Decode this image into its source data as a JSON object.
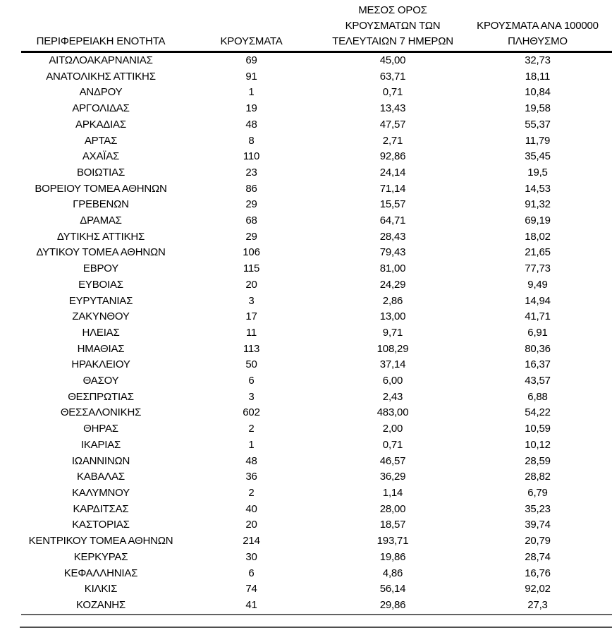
{
  "table": {
    "columns": [
      "ΠΕΡΙΦΕΡΕΙΑΚΗ ΕΝΟΤΗΤΑ",
      "ΚΡΟΥΣΜΑΤΑ",
      "ΜΕΣΟΣ ΟΡΟΣ ΚΡΟΥΣΜΑΤΩΝ ΤΩΝ ΤΕΛΕΥΤΑΙΩΝ 7 ΗΜΕΡΩΝ",
      "ΚΡΟΥΣΜΑΤΑ ΑΝΑ 100000 ΠΛΗΘΥΣΜΟ"
    ],
    "header_lines": [
      [
        "ΠΕΡΙΦΕΡΕΙΑΚΗ ΕΝΟΤΗΤΑ"
      ],
      [
        "ΚΡΟΥΣΜΑΤΑ"
      ],
      [
        "ΜΕΣΟΣ ΟΡΟΣ",
        "ΚΡΟΥΣΜΑΤΩΝ ΤΩΝ",
        "ΤΕΛΕΥΤΑΙΩΝ 7 ΗΜΕΡΩΝ"
      ],
      [
        "ΚΡΟΥΣΜΑΤΑ ΑΝΑ 100000",
        "ΠΛΗΘΥΣΜΟ"
      ]
    ],
    "rows": [
      [
        "ΑΙΤΩΛΟΑΚΑΡΝΑΝΙΑΣ",
        "69",
        "45,00",
        "32,73"
      ],
      [
        "ΑΝΑΤΟΛΙΚΗΣ ΑΤΤΙΚΗΣ",
        "91",
        "63,71",
        "18,11"
      ],
      [
        "ΑΝΔΡΟΥ",
        "1",
        "0,71",
        "10,84"
      ],
      [
        "ΑΡΓΟΛΙΔΑΣ",
        "19",
        "13,43",
        "19,58"
      ],
      [
        "ΑΡΚΑΔΙΑΣ",
        "48",
        "47,57",
        "55,37"
      ],
      [
        "ΑΡΤΑΣ",
        "8",
        "2,71",
        "11,79"
      ],
      [
        "ΑΧΑΪΑΣ",
        "110",
        "92,86",
        "35,45"
      ],
      [
        "ΒΟΙΩΤΙΑΣ",
        "23",
        "24,14",
        "19,5"
      ],
      [
        "ΒΟΡΕΙΟΥ ΤΟΜΕΑ ΑΘΗΝΩΝ",
        "86",
        "71,14",
        "14,53"
      ],
      [
        "ΓΡΕΒΕΝΩΝ",
        "29",
        "15,57",
        "91,32"
      ],
      [
        "ΔΡΑΜΑΣ",
        "68",
        "64,71",
        "69,19"
      ],
      [
        "ΔΥΤΙΚΗΣ ΑΤΤΙΚΗΣ",
        "29",
        "28,43",
        "18,02"
      ],
      [
        "ΔΥΤΙΚΟΥ ΤΟΜΕΑ ΑΘΗΝΩΝ",
        "106",
        "79,43",
        "21,65"
      ],
      [
        "ΕΒΡΟΥ",
        "115",
        "81,00",
        "77,73"
      ],
      [
        "ΕΥΒΟΙΑΣ",
        "20",
        "24,29",
        "9,49"
      ],
      [
        "ΕΥΡΥΤΑΝΙΑΣ",
        "3",
        "2,86",
        "14,94"
      ],
      [
        "ΖΑΚΥΝΘΟΥ",
        "17",
        "13,00",
        "41,71"
      ],
      [
        "ΗΛΕΙΑΣ",
        "11",
        "9,71",
        "6,91"
      ],
      [
        "ΗΜΑΘΙΑΣ",
        "113",
        "108,29",
        "80,36"
      ],
      [
        "ΗΡΑΚΛΕΙΟΥ",
        "50",
        "37,14",
        "16,37"
      ],
      [
        "ΘΑΣΟΥ",
        "6",
        "6,00",
        "43,57"
      ],
      [
        "ΘΕΣΠΡΩΤΙΑΣ",
        "3",
        "2,43",
        "6,88"
      ],
      [
        "ΘΕΣΣΑΛΟΝΙΚΗΣ",
        "602",
        "483,00",
        "54,22"
      ],
      [
        "ΘΗΡΑΣ",
        "2",
        "2,00",
        "10,59"
      ],
      [
        "ΙΚΑΡΙΑΣ",
        "1",
        "0,71",
        "10,12"
      ],
      [
        "ΙΩΑΝΝΙΝΩΝ",
        "48",
        "46,57",
        "28,59"
      ],
      [
        "ΚΑΒΑΛΑΣ",
        "36",
        "36,29",
        "28,82"
      ],
      [
        "ΚΑΛΥΜΝΟΥ",
        "2",
        "1,14",
        "6,79"
      ],
      [
        "ΚΑΡΔΙΤΣΑΣ",
        "40",
        "28,00",
        "35,23"
      ],
      [
        "ΚΑΣΤΟΡΙΑΣ",
        "20",
        "18,57",
        "39,74"
      ],
      [
        "ΚΕΝΤΡΙΚΟΥ ΤΟΜΕΑ ΑΘΗΝΩΝ",
        "214",
        "193,71",
        "20,79"
      ],
      [
        "ΚΕΡΚΥΡΑΣ",
        "30",
        "19,86",
        "28,74"
      ],
      [
        "ΚΕΦΑΛΛΗΝΙΑΣ",
        "6",
        "4,86",
        "16,76"
      ],
      [
        "ΚΙΛΚΙΣ",
        "74",
        "56,14",
        "92,02"
      ],
      [
        "ΚΟΖΑΝΗΣ",
        "41",
        "29,86",
        "27,3"
      ]
    ]
  },
  "chart_data": {
    "type": "table",
    "columns": [
      "ΠΕΡΙΦΕΡΕΙΑΚΗ ΕΝΟΤΗΤΑ",
      "ΚΡΟΥΣΜΑΤΑ",
      "ΜΕΣΟΣ ΟΡΟΣ ΚΡΟΥΣΜΑΤΩΝ ΤΩΝ ΤΕΛΕΥΤΑΙΩΝ 7 ΗΜΕΡΩΝ",
      "ΚΡΟΥΣΜΑΤΑ ΑΝΑ 100000 ΠΛΗΘΥΣΜΟ"
    ],
    "categories": [
      "ΑΙΤΩΛΟΑΚΑΡΝΑΝΙΑΣ",
      "ΑΝΑΤΟΛΙΚΗΣ ΑΤΤΙΚΗΣ",
      "ΑΝΔΡΟΥ",
      "ΑΡΓΟΛΙΔΑΣ",
      "ΑΡΚΑΔΙΑΣ",
      "ΑΡΤΑΣ",
      "ΑΧΑΪΑΣ",
      "ΒΟΙΩΤΙΑΣ",
      "ΒΟΡΕΙΟΥ ΤΟΜΕΑ ΑΘΗΝΩΝ",
      "ΓΡΕΒΕΝΩΝ",
      "ΔΡΑΜΑΣ",
      "ΔΥΤΙΚΗΣ ΑΤΤΙΚΗΣ",
      "ΔΥΤΙΚΟΥ ΤΟΜΕΑ ΑΘΗΝΩΝ",
      "ΕΒΡΟΥ",
      "ΕΥΒΟΙΑΣ",
      "ΕΥΡΥΤΑΝΙΑΣ",
      "ΖΑΚΥΝΘΟΥ",
      "ΗΛΕΙΑΣ",
      "ΗΜΑΘΙΑΣ",
      "ΗΡΑΚΛΕΙΟΥ",
      "ΘΑΣΟΥ",
      "ΘΕΣΠΡΩΤΙΑΣ",
      "ΘΕΣΣΑΛΟΝΙΚΗΣ",
      "ΘΗΡΑΣ",
      "ΙΚΑΡΙΑΣ",
      "ΙΩΑΝΝΙΝΩΝ",
      "ΚΑΒΑΛΑΣ",
      "ΚΑΛΥΜΝΟΥ",
      "ΚΑΡΔΙΤΣΑΣ",
      "ΚΑΣΤΟΡΙΑΣ",
      "ΚΕΝΤΡΙΚΟΥ ΤΟΜΕΑ ΑΘΗΝΩΝ",
      "ΚΕΡΚΥΡΑΣ",
      "ΚΕΦΑΛΛΗΝΙΑΣ",
      "ΚΙΛΚΙΣ",
      "ΚΟΖΑΝΗΣ"
    ],
    "series": [
      {
        "name": "ΚΡΟΥΣΜΑΤΑ",
        "values": [
          69,
          91,
          1,
          19,
          48,
          8,
          110,
          23,
          86,
          29,
          68,
          29,
          106,
          115,
          20,
          3,
          17,
          11,
          113,
          50,
          6,
          3,
          602,
          2,
          1,
          48,
          36,
          2,
          40,
          20,
          214,
          30,
          6,
          74,
          41
        ]
      },
      {
        "name": "ΜΕΣΟΣ ΟΡΟΣ ΚΡΟΥΣΜΑΤΩΝ ΤΩΝ ΤΕΛΕΥΤΑΙΩΝ 7 ΗΜΕΡΩΝ",
        "values": [
          45.0,
          63.71,
          0.71,
          13.43,
          47.57,
          2.71,
          92.86,
          24.14,
          71.14,
          15.57,
          64.71,
          28.43,
          79.43,
          81.0,
          24.29,
          2.86,
          13.0,
          9.71,
          108.29,
          37.14,
          6.0,
          2.43,
          483.0,
          2.0,
          0.71,
          46.57,
          36.29,
          1.14,
          28.0,
          18.57,
          193.71,
          19.86,
          4.86,
          56.14,
          29.86
        ]
      },
      {
        "name": "ΚΡΟΥΣΜΑΤΑ ΑΝΑ 100000 ΠΛΗΘΥΣΜΟ",
        "values": [
          32.73,
          18.11,
          10.84,
          19.58,
          55.37,
          11.79,
          35.45,
          19.5,
          14.53,
          91.32,
          69.19,
          18.02,
          21.65,
          77.73,
          9.49,
          14.94,
          41.71,
          6.91,
          80.36,
          16.37,
          43.57,
          6.88,
          54.22,
          10.59,
          10.12,
          28.59,
          28.82,
          6.79,
          35.23,
          39.74,
          20.79,
          28.74,
          16.76,
          92.02,
          27.3
        ]
      }
    ]
  },
  "colors": {
    "text": "#000000",
    "header_rule": "#000000",
    "table_bottom_rule": "#636363",
    "footer_rule": "#4f4f4f",
    "background": "#ffffff"
  }
}
